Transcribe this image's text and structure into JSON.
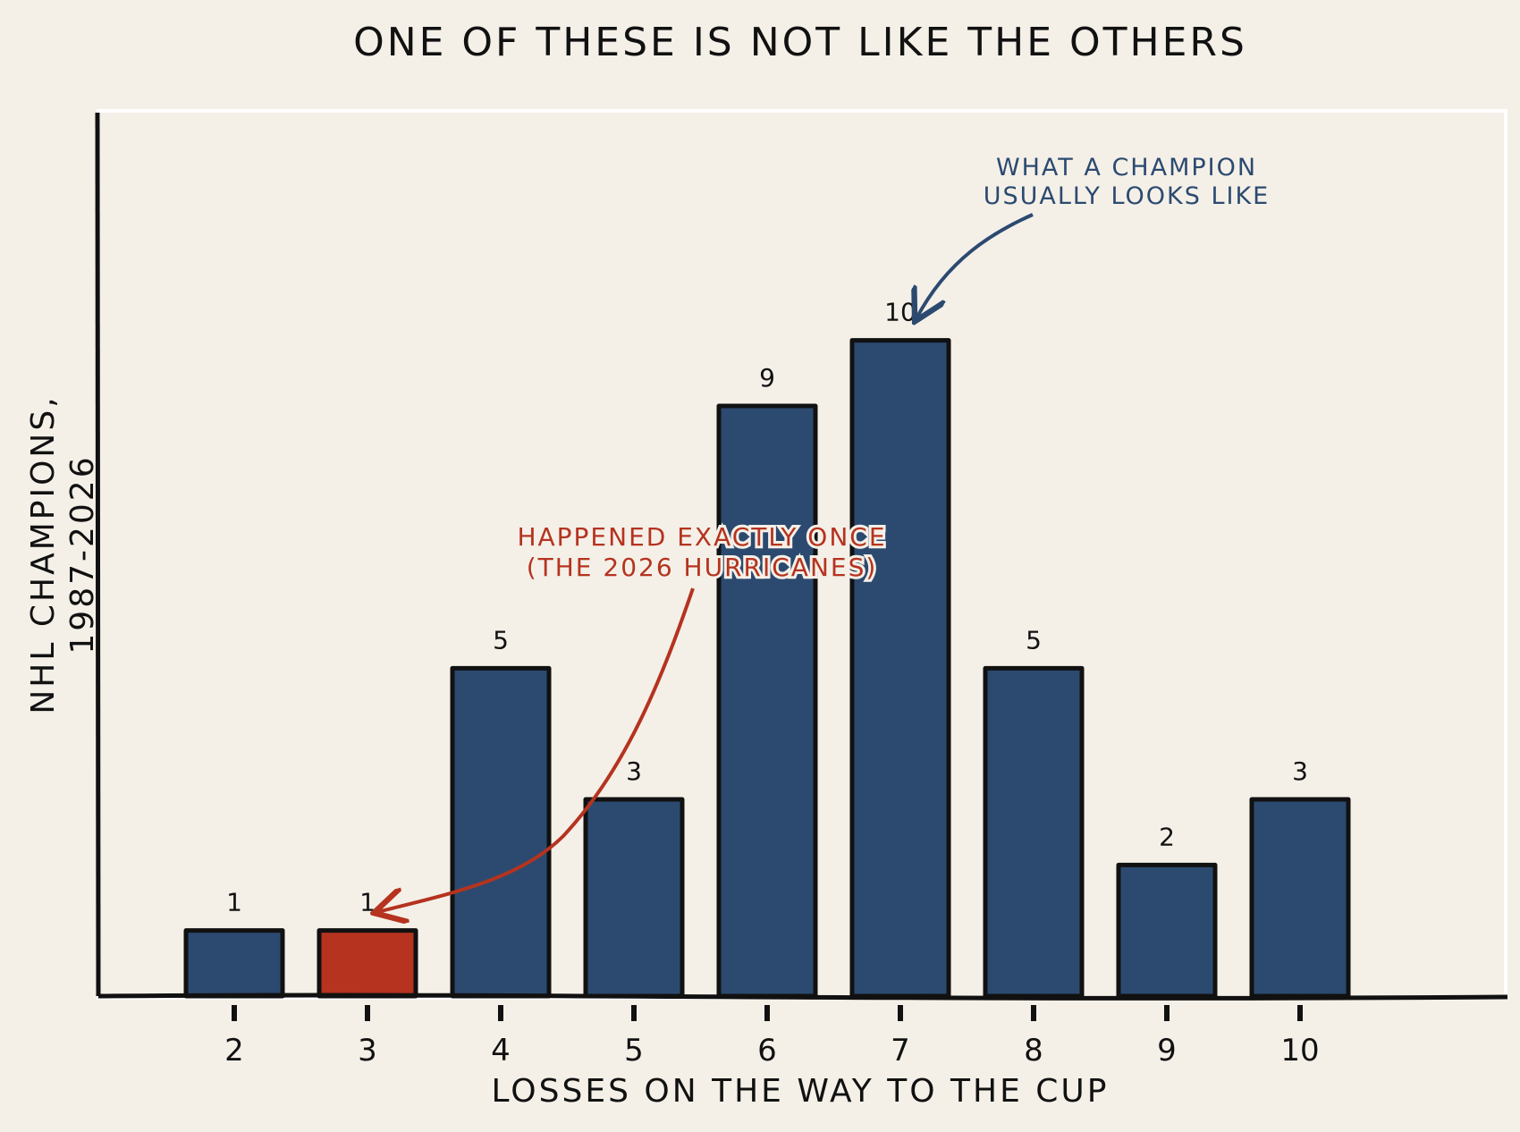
{
  "chart_data": {
    "type": "bar",
    "title": "ONE OF THESE IS NOT LIKE THE OTHERS",
    "xlabel": "LOSSES ON THE WAY TO THE CUP",
    "ylabel": [
      "NHL CHAMPIONS,",
      "1987-2026"
    ],
    "categories": [
      "2",
      "3",
      "4",
      "5",
      "6",
      "7",
      "8",
      "9",
      "10"
    ],
    "values": [
      1,
      1,
      5,
      3,
      9,
      10,
      5,
      2,
      3
    ],
    "highlight_index": 1,
    "ylim": [
      0,
      13.5
    ],
    "grid": false,
    "colors": {
      "bar": "#2c4a70",
      "highlight": "#b5331f",
      "background": "#f4f0e8",
      "outline": "#111111"
    },
    "annotations": [
      {
        "lines": [
          "HAPPENED EXACTLY ONCE",
          "(THE 2026 HURRICANES)"
        ],
        "points_to": "3",
        "color": "#b5331f"
      },
      {
        "lines": [
          "WHAT A CHAMPION",
          "USUALLY LOOKS LIKE"
        ],
        "points_to": "7",
        "color": "#2c4a70"
      }
    ]
  }
}
